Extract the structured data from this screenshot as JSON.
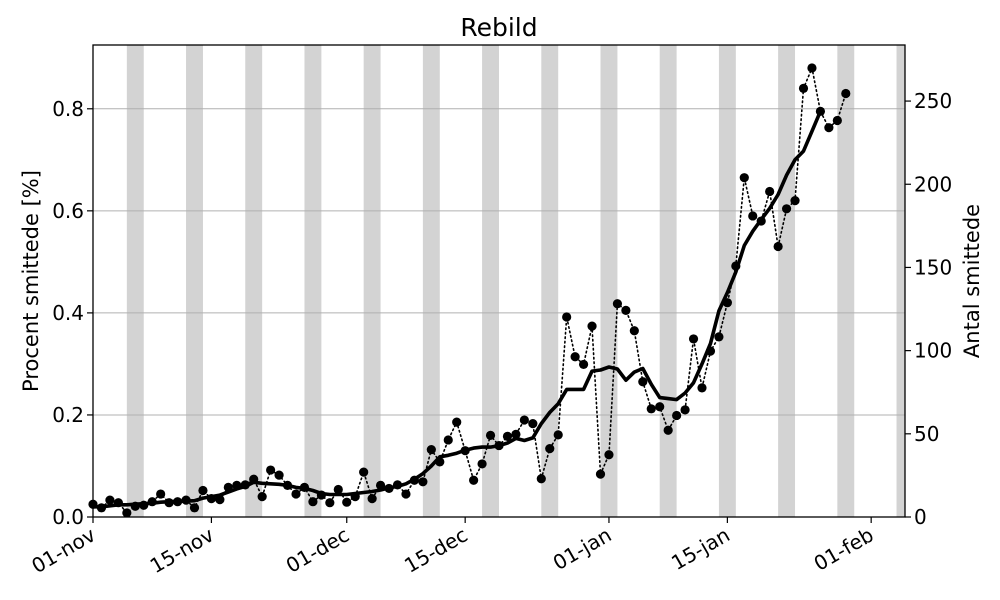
{
  "chart_data": {
    "type": "line",
    "title": "Rebild",
    "ylabel_left": "Procent smittede [%]",
    "ylabel_right": "Antal smittede",
    "x_start": "2020-11-01",
    "x_end": "2021-02-05",
    "x_ticks": [
      {
        "date": "2020-11-01",
        "label": "01-nov"
      },
      {
        "date": "2020-11-15",
        "label": "15-nov"
      },
      {
        "date": "2020-12-01",
        "label": "01-dec"
      },
      {
        "date": "2020-12-15",
        "label": "15-dec"
      },
      {
        "date": "2021-01-01",
        "label": "01-jan"
      },
      {
        "date": "2021-01-15",
        "label": "15-jan"
      },
      {
        "date": "2021-02-01",
        "label": "01-feb"
      }
    ],
    "ylim_left": [
      0,
      0.925
    ],
    "yticks_left": [
      "0.0",
      "0.2",
      "0.4",
      "0.6",
      "0.8"
    ],
    "ylim_right": [
      0,
      283.7
    ],
    "yticks_right": [
      "0",
      "50",
      "100",
      "150",
      "200",
      "250"
    ],
    "grid": "horizontal",
    "weekend_bands": [
      "2020-11-05",
      "2020-11-12",
      "2020-11-19",
      "2020-11-26",
      "2020-12-03",
      "2020-12-10",
      "2020-12-17",
      "2020-12-24",
      "2020-12-31",
      "2021-01-07",
      "2021-01-14",
      "2021-01-21",
      "2021-01-28",
      "2021-02-04"
    ],
    "series": [
      {
        "style": "dotted-markers",
        "color": "#000000",
        "points": [
          [
            "2020-11-01",
            0.025
          ],
          [
            "2020-11-02",
            0.018
          ],
          [
            "2020-11-03",
            0.033
          ],
          [
            "2020-11-04",
            0.028
          ],
          [
            "2020-11-05",
            0.008
          ],
          [
            "2020-11-06",
            0.021
          ],
          [
            "2020-11-07",
            0.023
          ],
          [
            "2020-11-08",
            0.03
          ],
          [
            "2020-11-09",
            0.045
          ],
          [
            "2020-11-10",
            0.028
          ],
          [
            "2020-11-11",
            0.03
          ],
          [
            "2020-11-12",
            0.033
          ],
          [
            "2020-11-13",
            0.018
          ],
          [
            "2020-11-14",
            0.052
          ],
          [
            "2020-11-15",
            0.036
          ],
          [
            "2020-11-16",
            0.034
          ],
          [
            "2020-11-17",
            0.058
          ],
          [
            "2020-11-18",
            0.062
          ],
          [
            "2020-11-19",
            0.063
          ],
          [
            "2020-11-20",
            0.074
          ],
          [
            "2020-11-21",
            0.04
          ],
          [
            "2020-11-22",
            0.092
          ],
          [
            "2020-11-23",
            0.082
          ],
          [
            "2020-11-24",
            0.062
          ],
          [
            "2020-11-25",
            0.045
          ],
          [
            "2020-11-26",
            0.058
          ],
          [
            "2020-11-27",
            0.03
          ],
          [
            "2020-11-28",
            0.043
          ],
          [
            "2020-11-29",
            0.028
          ],
          [
            "2020-11-30",
            0.054
          ],
          [
            "2020-12-01",
            0.029
          ],
          [
            "2020-12-02",
            0.04
          ],
          [
            "2020-12-03",
            0.088
          ],
          [
            "2020-12-04",
            0.036
          ],
          [
            "2020-12-05",
            0.062
          ],
          [
            "2020-12-06",
            0.056
          ],
          [
            "2020-12-07",
            0.063
          ],
          [
            "2020-12-08",
            0.045
          ],
          [
            "2020-12-09",
            0.072
          ],
          [
            "2020-12-10",
            0.069
          ],
          [
            "2020-12-11",
            0.132
          ],
          [
            "2020-12-12",
            0.108
          ],
          [
            "2020-12-13",
            0.151
          ],
          [
            "2020-12-14",
            0.186
          ],
          [
            "2020-12-15",
            0.13
          ],
          [
            "2020-12-16",
            0.072
          ],
          [
            "2020-12-17",
            0.104
          ],
          [
            "2020-12-18",
            0.16
          ],
          [
            "2020-12-19",
            0.14
          ],
          [
            "2020-12-20",
            0.158
          ],
          [
            "2020-12-21",
            0.162
          ],
          [
            "2020-12-22",
            0.19
          ],
          [
            "2020-12-23",
            0.183
          ],
          [
            "2020-12-24",
            0.075
          ],
          [
            "2020-12-25",
            0.134
          ],
          [
            "2020-12-26",
            0.161
          ],
          [
            "2020-12-27",
            0.392
          ],
          [
            "2020-12-28",
            0.314
          ],
          [
            "2020-12-29",
            0.299
          ],
          [
            "2020-12-30",
            0.374
          ],
          [
            "2020-12-31",
            0.084
          ],
          [
            "2021-01-01",
            0.122
          ],
          [
            "2021-01-02",
            0.418
          ],
          [
            "2021-01-03",
            0.405
          ],
          [
            "2021-01-04",
            0.365
          ],
          [
            "2021-01-05",
            0.265
          ],
          [
            "2021-01-06",
            0.212
          ],
          [
            "2021-01-07",
            0.216
          ],
          [
            "2021-01-08",
            0.17
          ],
          [
            "2021-01-09",
            0.199
          ],
          [
            "2021-01-10",
            0.21
          ],
          [
            "2021-01-11",
            0.349
          ],
          [
            "2021-01-12",
            0.253
          ],
          [
            "2021-01-13",
            0.325
          ],
          [
            "2021-01-14",
            0.353
          ],
          [
            "2021-01-15",
            0.42
          ],
          [
            "2021-01-16",
            0.492
          ],
          [
            "2021-01-17",
            0.665
          ],
          [
            "2021-01-18",
            0.59
          ],
          [
            "2021-01-19",
            0.58
          ],
          [
            "2021-01-20",
            0.638
          ],
          [
            "2021-01-21",
            0.53
          ],
          [
            "2021-01-22",
            0.604
          ],
          [
            "2021-01-23",
            0.62
          ],
          [
            "2021-01-24",
            0.84
          ],
          [
            "2021-01-25",
            0.88
          ],
          [
            "2021-01-26",
            0.795
          ],
          [
            "2021-01-27",
            0.763
          ],
          [
            "2021-01-28",
            0.777
          ],
          [
            "2021-01-29",
            0.83
          ]
        ]
      },
      {
        "style": "thick-line",
        "color": "#000000",
        "points": [
          [
            "2020-11-01",
            0.02
          ],
          [
            "2020-11-02",
            0.02
          ],
          [
            "2020-11-03",
            0.022
          ],
          [
            "2020-11-04",
            0.024
          ],
          [
            "2020-11-05",
            0.024
          ],
          [
            "2020-11-06",
            0.025
          ],
          [
            "2020-11-07",
            0.026
          ],
          [
            "2020-11-08",
            0.027
          ],
          [
            "2020-11-09",
            0.029
          ],
          [
            "2020-11-10",
            0.03
          ],
          [
            "2020-11-11",
            0.031
          ],
          [
            "2020-11-12",
            0.031
          ],
          [
            "2020-11-13",
            0.032
          ],
          [
            "2020-11-14",
            0.037
          ],
          [
            "2020-11-15",
            0.04
          ],
          [
            "2020-11-16",
            0.043
          ],
          [
            "2020-11-17",
            0.049
          ],
          [
            "2020-11-18",
            0.055
          ],
          [
            "2020-11-19",
            0.06
          ],
          [
            "2020-11-20",
            0.068
          ],
          [
            "2020-11-21",
            0.066
          ],
          [
            "2020-11-22",
            0.065
          ],
          [
            "2020-11-23",
            0.064
          ],
          [
            "2020-11-24",
            0.062
          ],
          [
            "2020-11-25",
            0.058
          ],
          [
            "2020-11-26",
            0.056
          ],
          [
            "2020-11-27",
            0.052
          ],
          [
            "2020-11-28",
            0.046
          ],
          [
            "2020-11-29",
            0.044
          ],
          [
            "2020-11-30",
            0.044
          ],
          [
            "2020-12-01",
            0.044
          ],
          [
            "2020-12-02",
            0.046
          ],
          [
            "2020-12-03",
            0.048
          ],
          [
            "2020-12-04",
            0.05
          ],
          [
            "2020-12-05",
            0.053
          ],
          [
            "2020-12-06",
            0.057
          ],
          [
            "2020-12-07",
            0.06
          ],
          [
            "2020-12-08",
            0.065
          ],
          [
            "2020-12-09",
            0.074
          ],
          [
            "2020-12-10",
            0.085
          ],
          [
            "2020-12-11",
            0.1
          ],
          [
            "2020-12-12",
            0.118
          ],
          [
            "2020-12-13",
            0.121
          ],
          [
            "2020-12-14",
            0.125
          ],
          [
            "2020-12-15",
            0.131
          ],
          [
            "2020-12-16",
            0.135
          ],
          [
            "2020-12-17",
            0.137
          ],
          [
            "2020-12-18",
            0.137
          ],
          [
            "2020-12-19",
            0.14
          ],
          [
            "2020-12-20",
            0.145
          ],
          [
            "2020-12-21",
            0.154
          ],
          [
            "2020-12-22",
            0.15
          ],
          [
            "2020-12-23",
            0.155
          ],
          [
            "2020-12-24",
            0.183
          ],
          [
            "2020-12-25",
            0.205
          ],
          [
            "2020-12-26",
            0.222
          ],
          [
            "2020-12-27",
            0.25
          ],
          [
            "2020-12-28",
            0.25
          ],
          [
            "2020-12-29",
            0.25
          ],
          [
            "2020-12-30",
            0.286
          ],
          [
            "2020-12-31",
            0.288
          ],
          [
            "2021-01-01",
            0.294
          ],
          [
            "2021-01-02",
            0.29
          ],
          [
            "2021-01-03",
            0.268
          ],
          [
            "2021-01-04",
            0.284
          ],
          [
            "2021-01-05",
            0.291
          ],
          [
            "2021-01-06",
            0.26
          ],
          [
            "2021-01-07",
            0.234
          ],
          [
            "2021-01-08",
            0.232
          ],
          [
            "2021-01-09",
            0.23
          ],
          [
            "2021-01-10",
            0.243
          ],
          [
            "2021-01-11",
            0.263
          ],
          [
            "2021-01-12",
            0.3
          ],
          [
            "2021-01-13",
            0.34
          ],
          [
            "2021-01-14",
            0.404
          ],
          [
            "2021-01-15",
            0.44
          ],
          [
            "2021-01-16",
            0.48
          ],
          [
            "2021-01-17",
            0.532
          ],
          [
            "2021-01-18",
            0.56
          ],
          [
            "2021-01-19",
            0.583
          ],
          [
            "2021-01-20",
            0.605
          ],
          [
            "2021-01-21",
            0.632
          ],
          [
            "2021-01-22",
            0.67
          ],
          [
            "2021-01-23",
            0.7
          ],
          [
            "2021-01-24",
            0.717
          ],
          [
            "2021-01-25",
            0.756
          ],
          [
            "2021-01-26",
            0.795
          ]
        ]
      }
    ]
  }
}
